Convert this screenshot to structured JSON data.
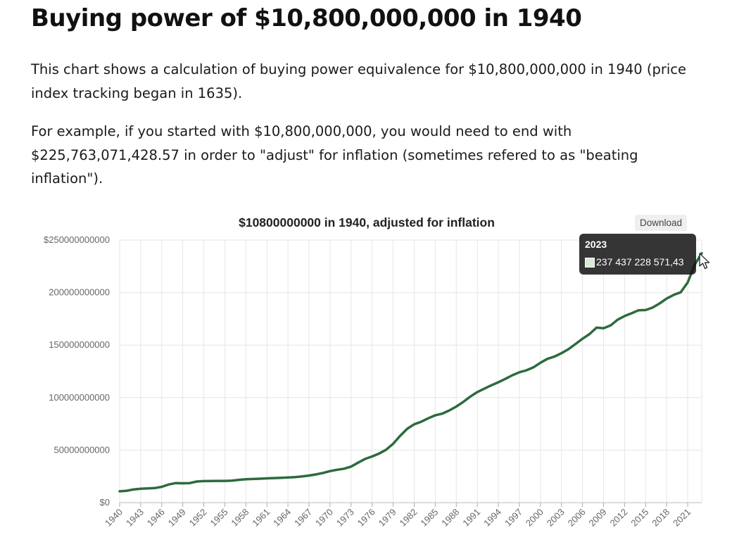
{
  "page": {
    "title": "Buying power of $10,800,000,000 in 1940",
    "paragraph1_lines": [
      "This chart shows a calculation of buying power equivalence for $10,800,000,000 in 1940 (price",
      "index tracking began in 1635)."
    ],
    "paragraph2_lines": [
      "For example, if you started with $10,800,000,000, you would need to end with",
      "$225,763,071,428.57 in order to \"adjust\" for inflation (sometimes refered to as \"beating",
      "inflation\")."
    ]
  },
  "download_label": "Download",
  "tooltip": {
    "year": "2023",
    "value": "237 437 228 571,43"
  },
  "colors": {
    "line": "#2d6a3e",
    "grid": "#e6e6e6",
    "axis_text": "#666666"
  },
  "chart_data": {
    "type": "line",
    "title": "$10800000000 in 1940, adjusted for inflation",
    "xlabel": "",
    "ylabel": "",
    "ylim": [
      0,
      250000000000
    ],
    "y_ticks": [
      0,
      50000000000,
      100000000000,
      150000000000,
      200000000000,
      250000000000
    ],
    "y_tick_labels": [
      "$0",
      "50000000000",
      "100000000000",
      "150000000000",
      "200000000000",
      "$250000000000"
    ],
    "x_tick_labels": [
      "1940",
      "1943",
      "1946",
      "1949",
      "1952",
      "1955",
      "1958",
      "1961",
      "1964",
      "1967",
      "1970",
      "1973",
      "1976",
      "1979",
      "1982",
      "1985",
      "1988",
      "1991",
      "1994",
      "1997",
      "2000",
      "2003",
      "2006",
      "2009",
      "2012",
      "2015",
      "2018",
      "2021"
    ],
    "grid": true,
    "legend": "none",
    "series": [
      {
        "x": [
          1940,
          1941,
          1942,
          1943,
          1944,
          1945,
          1946,
          1947,
          1948,
          1949,
          1950,
          1951,
          1952,
          1953,
          1954,
          1955,
          1956,
          1957,
          1958,
          1959,
          1960,
          1961,
          1962,
          1963,
          1964,
          1965,
          1966,
          1967,
          1968,
          1969,
          1970,
          1971,
          1972,
          1973,
          1974,
          1975,
          1976,
          1977,
          1978,
          1979,
          1980,
          1981,
          1982,
          1983,
          1984,
          1985,
          1986,
          1987,
          1988,
          1989,
          1990,
          1991,
          1992,
          1993,
          1994,
          1995,
          1996,
          1997,
          1998,
          1999,
          2000,
          2001,
          2002,
          2003,
          2004,
          2005,
          2006,
          2007,
          2008,
          2009,
          2010,
          2011,
          2012,
          2013,
          2014,
          2015,
          2016,
          2017,
          2018,
          2019,
          2020,
          2021,
          2022,
          2023
        ],
        "values": [
          10800000000,
          11300000000,
          12600000000,
          13300000000,
          13600000000,
          13900000000,
          15100000000,
          17300000000,
          18600000000,
          18400000000,
          18600000000,
          20100000000,
          20500000000,
          20600000000,
          20700000000,
          20700000000,
          21000000000,
          21700000000,
          22300000000,
          22500000000,
          22800000000,
          23100000000,
          23400000000,
          23600000000,
          23900000000,
          24300000000,
          25000000000,
          25800000000,
          26900000000,
          28300000000,
          30000000000,
          31300000000,
          32300000000,
          34300000000,
          38100000000,
          41600000000,
          44000000000,
          46800000000,
          50400000000,
          56100000000,
          63700000000,
          70300000000,
          74600000000,
          77000000000,
          80300000000,
          83200000000,
          84700000000,
          87800000000,
          91500000000,
          95900000000,
          101000000000,
          105300000000,
          108500000000,
          111700000000,
          114600000000,
          117800000000,
          121300000000,
          124100000000,
          126000000000,
          128800000000,
          133200000000,
          136900000000,
          139100000000,
          142300000000,
          146100000000,
          151100000000,
          156000000000,
          160500000000,
          166600000000,
          166000000000,
          168700000000,
          174100000000,
          177700000000,
          180300000000,
          183200000000,
          183400000000,
          185700000000,
          189700000000,
          194300000000,
          197800000000,
          200300000000,
          209700000000,
          226500000000,
          237437228571
        ]
      }
    ]
  }
}
